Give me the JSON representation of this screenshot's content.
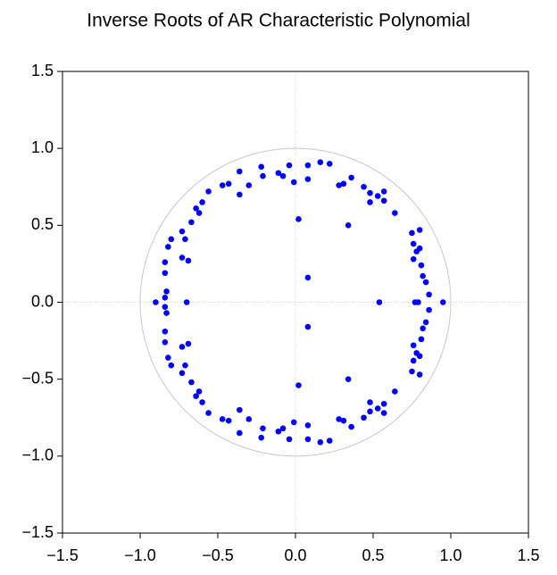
{
  "chart_data": {
    "type": "scatter",
    "title": "Inverse Roots of AR Characteristic Polynomial",
    "color": "#0000ff",
    "x": [
      -0.83,
      -0.84,
      -0.84,
      -0.84,
      -0.82,
      -0.8,
      -0.73,
      -0.69,
      -0.73,
      -0.71,
      -0.67,
      -0.62,
      -0.64,
      -0.6,
      -0.56,
      -0.47,
      -0.43,
      -0.36,
      -0.36,
      -0.3,
      -0.22,
      -0.21,
      -0.11,
      -0.08,
      -0.04,
      -0.01,
      0.08,
      0.08,
      0.16,
      0.22,
      0.28,
      0.31,
      0.36,
      0.44,
      0.48,
      0.48,
      0.53,
      0.57,
      0.57,
      0.64,
      0.75,
      0.76,
      0.8,
      0.78,
      0.8,
      0.76,
      0.81,
      0.82,
      0.86,
      0.84,
      0.02,
      0.34,
      0.08,
      -0.83,
      -0.84,
      -0.84,
      -0.84,
      -0.82,
      -0.8,
      -0.73,
      -0.69,
      -0.73,
      -0.71,
      -0.67,
      -0.62,
      -0.64,
      -0.6,
      -0.56,
      -0.47,
      -0.43,
      -0.36,
      -0.36,
      -0.3,
      -0.22,
      -0.21,
      -0.11,
      -0.08,
      -0.04,
      -0.01,
      0.08,
      0.08,
      0.16,
      0.22,
      0.28,
      0.31,
      0.36,
      0.44,
      0.48,
      0.48,
      0.53,
      0.57,
      0.57,
      0.64,
      0.75,
      0.76,
      0.8,
      0.78,
      0.8,
      0.76,
      0.81,
      0.82,
      0.86,
      0.84,
      0.02,
      0.34,
      0.08,
      -0.9,
      -0.7,
      0.77,
      0.79,
      0.95,
      0.54
    ],
    "y": [
      0.07,
      0.03,
      0.19,
      0.26,
      0.36,
      0.41,
      0.29,
      0.27,
      0.46,
      0.41,
      0.52,
      0.58,
      0.61,
      0.65,
      0.72,
      0.76,
      0.77,
      0.7,
      0.85,
      0.76,
      0.88,
      0.82,
      0.84,
      0.82,
      0.89,
      0.78,
      0.89,
      0.8,
      0.91,
      0.9,
      0.76,
      0.77,
      0.81,
      0.75,
      0.71,
      0.65,
      0.69,
      0.66,
      0.72,
      0.58,
      0.45,
      0.38,
      0.47,
      0.33,
      0.35,
      0.28,
      0.24,
      0.17,
      0.05,
      0.13,
      0.54,
      0.5,
      0.16,
      -0.07,
      -0.03,
      -0.19,
      -0.26,
      -0.36,
      -0.41,
      -0.29,
      -0.27,
      -0.46,
      -0.41,
      -0.52,
      -0.58,
      -0.61,
      -0.65,
      -0.72,
      -0.76,
      -0.77,
      -0.7,
      -0.85,
      -0.76,
      -0.88,
      -0.82,
      -0.84,
      -0.82,
      -0.89,
      -0.78,
      -0.89,
      -0.8,
      -0.91,
      -0.9,
      -0.76,
      -0.77,
      -0.81,
      -0.75,
      -0.71,
      -0.65,
      -0.69,
      -0.66,
      -0.72,
      -0.58,
      -0.45,
      -0.38,
      -0.47,
      -0.33,
      -0.35,
      -0.28,
      -0.24,
      -0.17,
      -0.05,
      -0.13,
      -0.54,
      -0.5,
      -0.16,
      0,
      0,
      0,
      0,
      0,
      0
    ],
    "xlim": [
      -1.5,
      1.5
    ],
    "ylim": [
      -1.5,
      1.5
    ],
    "xticks": [
      {
        "value": -1.5,
        "label": "−1.5"
      },
      {
        "value": -1,
        "label": "−1.0"
      },
      {
        "value": -0.5,
        "label": "−0.5"
      },
      {
        "value": 0,
        "label": "0.0"
      },
      {
        "value": 0.5,
        "label": "0.5"
      },
      {
        "value": 1,
        "label": "1.0"
      },
      {
        "value": 1.5,
        "label": "1.5"
      }
    ],
    "yticks": [
      {
        "value": -1.5,
        "label": "−1.5"
      },
      {
        "value": -1,
        "label": "−1.0"
      },
      {
        "value": -0.5,
        "label": "−0.5"
      },
      {
        "value": 0,
        "label": "0.0"
      },
      {
        "value": 0.5,
        "label": "0.5"
      },
      {
        "value": 1,
        "label": "1.0"
      },
      {
        "value": 1.5,
        "label": "1.5"
      }
    ]
  }
}
